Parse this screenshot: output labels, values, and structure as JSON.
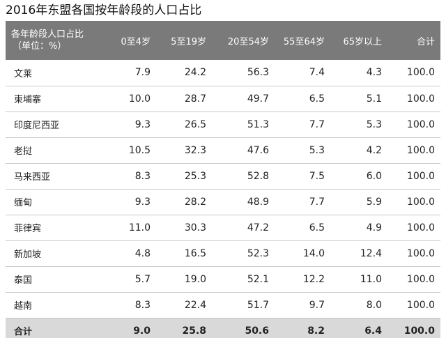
{
  "title": "2016年东盟各国按年龄段的人口占比",
  "table": {
    "header": {
      "label_line1": "各年龄段人口占比",
      "label_line2": "（单位：%）",
      "columns": [
        "0至4岁",
        "5至19岁",
        "20至54岁",
        "55至64岁",
        "65岁以上",
        "合计"
      ]
    },
    "rows": [
      {
        "name": "文莱",
        "values": [
          "7.9",
          "24.2",
          "56.3",
          "7.4",
          "4.3",
          "100.0"
        ]
      },
      {
        "name": "柬埔寨",
        "values": [
          "10.0",
          "28.7",
          "49.7",
          "6.5",
          "5.1",
          "100.0"
        ]
      },
      {
        "name": "印度尼西亚",
        "values": [
          "9.3",
          "26.5",
          "51.3",
          "7.7",
          "5.3",
          "100.0"
        ]
      },
      {
        "name": "老挝",
        "values": [
          "10.5",
          "32.3",
          "47.6",
          "5.3",
          "4.2",
          "100.0"
        ]
      },
      {
        "name": "马来西亚",
        "values": [
          "8.3",
          "25.3",
          "52.8",
          "7.5",
          "6.0",
          "100.0"
        ]
      },
      {
        "name": "缅甸",
        "values": [
          "9.3",
          "28.2",
          "48.9",
          "7.7",
          "5.9",
          "100.0"
        ]
      },
      {
        "name": "菲律宾",
        "values": [
          "11.0",
          "30.3",
          "47.2",
          "6.5",
          "4.9",
          "100.0"
        ]
      },
      {
        "name": "新加坡",
        "values": [
          "4.8",
          "16.5",
          "52.3",
          "14.0",
          "12.4",
          "100.0"
        ]
      },
      {
        "name": "泰国",
        "values": [
          "5.7",
          "19.0",
          "52.1",
          "12.2",
          "11.0",
          "100.0"
        ]
      },
      {
        "name": "越南",
        "values": [
          "8.3",
          "22.4",
          "51.7",
          "9.7",
          "8.0",
          "100.0"
        ]
      }
    ],
    "total": {
      "name": "合计",
      "values": [
        "9.0",
        "25.8",
        "50.6",
        "8.2",
        "6.4",
        "100.0"
      ]
    }
  }
}
